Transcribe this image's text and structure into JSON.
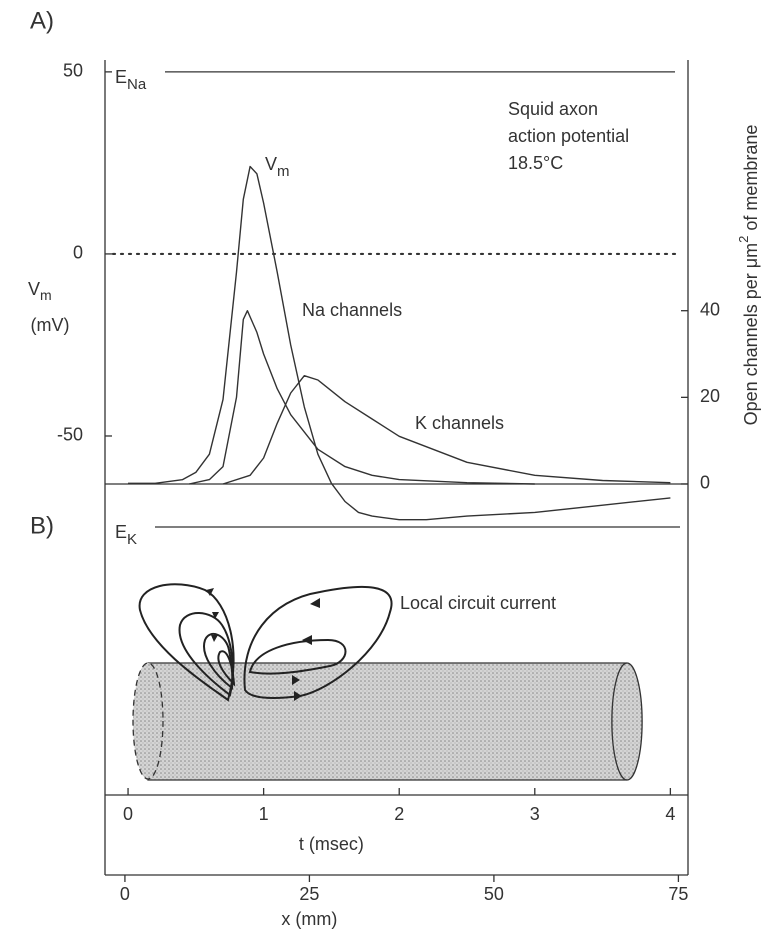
{
  "chart_data": {
    "type": "line",
    "panel_labels": [
      "A)",
      "B)"
    ],
    "xlabel": "t (msec)",
    "xlim": [
      -0.17,
      4.13
    ],
    "xticks": [
      0,
      1,
      2,
      3,
      4
    ],
    "x2label": "x (mm)",
    "x2lim": [
      -2.7,
      76.3
    ],
    "x2ticks": [
      0,
      25,
      50,
      75
    ],
    "ylabel": {
      "main": "V",
      "sub": "m",
      "unit": "(mV)"
    },
    "ylim": [
      -148.6,
      61.5
    ],
    "yticks": [
      -50,
      0,
      50
    ],
    "y2label": [
      "Open channels per μm",
      "2",
      " of membrane"
    ],
    "y2lim": [
      -71.8,
      104.8
    ],
    "y2ticks": [
      0,
      20,
      40
    ],
    "zero_line": {
      "value": 0,
      "style": "dotted"
    },
    "y2_baseline": 0,
    "reference_lines": [
      {
        "main": "E",
        "sub": "Na",
        "value": 50
      },
      {
        "main": "E",
        "sub": "K",
        "value": -75
      }
    ],
    "annotation": [
      "Squid axon",
      "action potential",
      "18.5°C"
    ],
    "diagram_label": "Local circuit current",
    "series": [
      {
        "name": "V",
        "name_sub": "m",
        "axis": "y",
        "color": "#333",
        "x": [
          0,
          0.2,
          0.4,
          0.5,
          0.6,
          0.7,
          0.8,
          0.85,
          0.9,
          0.95,
          1.0,
          1.1,
          1.2,
          1.3,
          1.4,
          1.5,
          1.6,
          1.7,
          1.8,
          2.0,
          2.2,
          2.5,
          3.0,
          3.5,
          4.0
        ],
        "values": [
          -63,
          -63,
          -62,
          -60,
          -55,
          -40,
          -5,
          15,
          24,
          22,
          14,
          -5,
          -25,
          -42,
          -55,
          -63,
          -68,
          -71,
          -72,
          -73,
          -73,
          -72,
          -71,
          -69,
          -67
        ]
      },
      {
        "name": "Na channels",
        "axis": "y2",
        "color": "#333",
        "x": [
          0.45,
          0.6,
          0.7,
          0.8,
          0.85,
          0.88,
          0.95,
          1.0,
          1.1,
          1.2,
          1.4,
          1.6,
          1.8,
          2.0,
          2.5,
          3.0
        ],
        "values": [
          0,
          1,
          4,
          20,
          38,
          40,
          35,
          30,
          22,
          16,
          8,
          4,
          2,
          1,
          0.3,
          0
        ]
      },
      {
        "name": "K channels",
        "axis": "y2",
        "color": "#333",
        "x": [
          0.7,
          0.9,
          1.0,
          1.1,
          1.2,
          1.3,
          1.4,
          1.6,
          1.8,
          2.0,
          2.5,
          3.0,
          3.5,
          4.0
        ],
        "values": [
          0,
          2,
          6,
          14,
          21,
          25,
          24,
          19,
          15,
          11,
          5,
          2,
          0.8,
          0.3
        ]
      }
    ]
  }
}
